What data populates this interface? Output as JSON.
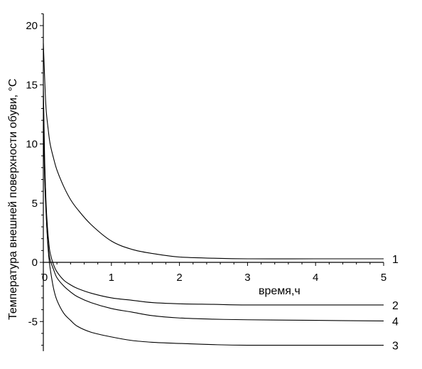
{
  "chart_data": {
    "type": "line",
    "xlabel": "время,ч",
    "ylabel": "Температура внешней поверхности обуви, °C",
    "xlim": [
      0,
      5
    ],
    "ylim": [
      -7.5,
      21
    ],
    "x_ticks": [
      "0",
      "1",
      "2",
      "3",
      "4",
      "5"
    ],
    "y_ticks": [
      "-5",
      "0",
      "5",
      "10",
      "15",
      "20"
    ],
    "x_tick_values": [
      0,
      1,
      2,
      3,
      4,
      5
    ],
    "y_tick_values": [
      -5,
      0,
      5,
      10,
      15,
      20
    ],
    "grid": false,
    "series": [
      {
        "name": "1",
        "color": "#000000",
        "x": [
          0,
          0.02,
          0.04,
          0.07,
          0.1,
          0.15,
          0.2,
          0.3,
          0.4,
          0.5,
          0.7,
          1.0,
          1.3,
          1.6,
          2.0,
          2.5,
          3.0,
          4.0,
          5.0
        ],
        "y": [
          18.5,
          15.5,
          13.0,
          11.3,
          10.0,
          8.8,
          7.8,
          6.4,
          5.3,
          4.5,
          3.2,
          1.8,
          1.1,
          0.75,
          0.45,
          0.35,
          0.3,
          0.3,
          0.3
        ]
      },
      {
        "name": "2",
        "color": "#000000",
        "x": [
          0,
          0.02,
          0.04,
          0.06,
          0.08,
          0.1,
          0.15,
          0.2,
          0.3,
          0.4,
          0.5,
          0.7,
          1.0,
          1.3,
          1.6,
          2.0,
          2.5,
          3.0,
          4.0,
          5.0
        ],
        "y": [
          12.0,
          8.0,
          5.0,
          3.0,
          1.7,
          0.8,
          -0.2,
          -0.8,
          -1.5,
          -1.9,
          -2.2,
          -2.6,
          -3.0,
          -3.2,
          -3.4,
          -3.5,
          -3.55,
          -3.6,
          -3.6,
          -3.6
        ]
      },
      {
        "name": "4",
        "color": "#000000",
        "x": [
          0,
          0.02,
          0.04,
          0.06,
          0.08,
          0.1,
          0.15,
          0.2,
          0.3,
          0.4,
          0.5,
          0.7,
          1.0,
          1.3,
          1.6,
          2.0,
          2.5,
          3.0,
          4.0,
          5.0
        ],
        "y": [
          12.0,
          7.0,
          4.2,
          2.2,
          0.9,
          0.2,
          -0.6,
          -1.3,
          -2.0,
          -2.5,
          -2.9,
          -3.4,
          -3.9,
          -4.2,
          -4.5,
          -4.7,
          -4.8,
          -4.85,
          -4.9,
          -4.95
        ]
      },
      {
        "name": "3",
        "color": "#000000",
        "x": [
          0,
          0.02,
          0.04,
          0.06,
          0.08,
          0.1,
          0.15,
          0.2,
          0.3,
          0.4,
          0.5,
          0.7,
          1.0,
          1.3,
          1.6,
          2.0,
          2.5,
          3.0,
          4.0,
          5.0
        ],
        "y": [
          15.0,
          8.5,
          4.5,
          2.0,
          0.5,
          -0.5,
          -2.2,
          -3.2,
          -4.3,
          -4.9,
          -5.4,
          -5.9,
          -6.3,
          -6.6,
          -6.75,
          -6.85,
          -6.95,
          -7.0,
          -7.0,
          -7.0
        ]
      }
    ]
  }
}
